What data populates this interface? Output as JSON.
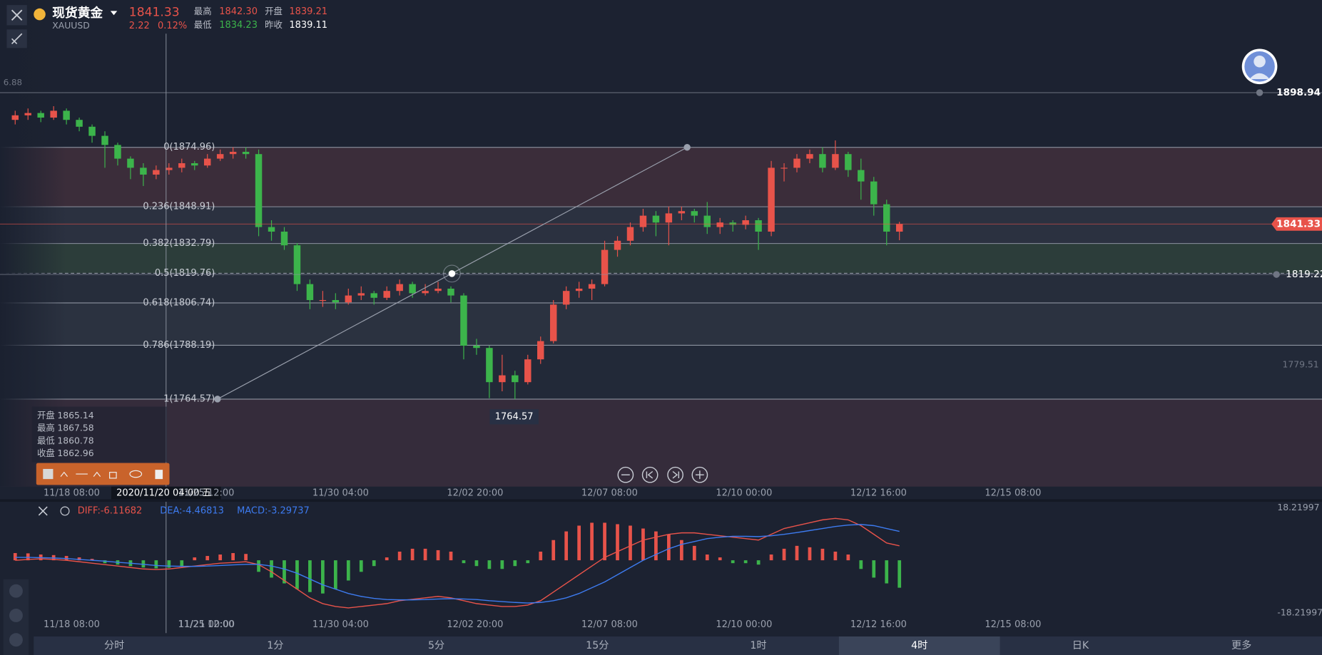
{
  "header": {
    "name": "现货黄金",
    "code": "XAUUSD",
    "price": "1841.33",
    "change": "2.22",
    "change_pct": "0.12%",
    "stats": [
      {
        "label": "最高",
        "value": "1842.30"
      },
      {
        "label": "开盘",
        "value": "1839.21"
      },
      {
        "label": "最低",
        "value": "1834.23"
      },
      {
        "label": "昨收",
        "value": "1839.11"
      }
    ]
  },
  "ohlc_box": [
    {
      "label": "开盘",
      "value": "1865.14"
    },
    {
      "label": "最高",
      "value": "1867.58"
    },
    {
      "label": "最低",
      "value": "1860.78"
    },
    {
      "label": "收盘",
      "value": "1862.96"
    }
  ],
  "crosshair_label": "2020/11/20 04:00 五",
  "left_cut_label": "6.88",
  "tabs": [
    "分时",
    "1分",
    "5分",
    "15分",
    "1时",
    "4时",
    "日K",
    "更多"
  ],
  "active_tab": "4时",
  "chart_data": [
    {
      "type": "candlestick",
      "up_color": "#e8534a",
      "down_color": "#3cb44b",
      "ylim": [
        1726.2,
        1939.56
      ],
      "x_labels": [
        "11/18 08:00",
        "11/21 00:00",
        "11/25 12:00",
        "11/30 04:00",
        "12/02 20:00",
        "12/07 08:00",
        "12/10 00:00",
        "12/12 16:00",
        "12/15 08:00"
      ],
      "price_lines": [
        1898.94,
        1841.33,
        1819.22
      ],
      "axis_labels": [
        1779.51
      ],
      "low_label": 1764.57,
      "fib_levels": [
        {
          "value": 1874.96,
          "label": "0(1874.96)"
        },
        {
          "value": 1848.91,
          "label": "0.236(1848.91)"
        },
        {
          "value": 1832.79,
          "label": "0.382(1832.79)"
        },
        {
          "value": 1819.76,
          "label": "0.5(1819.76)"
        },
        {
          "value": 1806.74,
          "label": "0.618(1806.74)"
        },
        {
          "value": 1788.19,
          "label": "0.786(1788.19)"
        },
        {
          "value": 1764.57,
          "label": "1(1764.57)"
        }
      ],
      "candles": [
        [
          1887,
          1891,
          1885,
          1889
        ],
        [
          1889,
          1892,
          1887,
          1890
        ],
        [
          1890,
          1891,
          1886,
          1888
        ],
        [
          1888,
          1893,
          1887,
          1891
        ],
        [
          1891,
          1892,
          1885,
          1887
        ],
        [
          1887,
          1888,
          1882,
          1884
        ],
        [
          1884,
          1885,
          1877,
          1880
        ],
        [
          1880,
          1882,
          1866,
          1876
        ],
        [
          1876,
          1877,
          1867,
          1870
        ],
        [
          1870,
          1871,
          1861,
          1866
        ],
        [
          1866,
          1868,
          1858,
          1863
        ],
        [
          1863,
          1867,
          1861,
          1865
        ],
        [
          1865,
          1868,
          1863,
          1866
        ],
        [
          1866,
          1870,
          1864,
          1868
        ],
        [
          1868,
          1869,
          1865,
          1867
        ],
        [
          1867,
          1872,
          1866,
          1870
        ],
        [
          1870,
          1874,
          1869,
          1872
        ],
        [
          1872,
          1875,
          1870,
          1873
        ],
        [
          1873,
          1875,
          1870,
          1872
        ],
        [
          1872,
          1874,
          1836,
          1840
        ],
        [
          1840,
          1843,
          1834,
          1838
        ],
        [
          1838,
          1840,
          1830,
          1832
        ],
        [
          1832,
          1833,
          1812,
          1815
        ],
        [
          1815,
          1817,
          1804,
          1808
        ],
        [
          1808,
          1812,
          1805,
          1808
        ],
        [
          1808,
          1811,
          1804,
          1807
        ],
        [
          1807,
          1813,
          1806,
          1810
        ],
        [
          1810,
          1814,
          1808,
          1811
        ],
        [
          1811,
          1812,
          1806,
          1809
        ],
        [
          1809,
          1814,
          1808,
          1812
        ],
        [
          1812,
          1817,
          1810,
          1815
        ],
        [
          1815,
          1816,
          1809,
          1811
        ],
        [
          1811,
          1815,
          1810,
          1812
        ],
        [
          1812,
          1816,
          1811,
          1813
        ],
        [
          1813,
          1814,
          1807,
          1810
        ],
        [
          1810,
          1811,
          1782,
          1788
        ],
        [
          1788,
          1791,
          1784,
          1787
        ],
        [
          1787,
          1788,
          1765,
          1772
        ],
        [
          1772,
          1784,
          1768,
          1775
        ],
        [
          1775,
          1777,
          1764.57,
          1772
        ],
        [
          1772,
          1784,
          1771,
          1782
        ],
        [
          1782,
          1792,
          1780,
          1790
        ],
        [
          1790,
          1808,
          1789,
          1806
        ],
        [
          1806,
          1814,
          1804,
          1812
        ],
        [
          1812,
          1816,
          1809,
          1813
        ],
        [
          1813,
          1817,
          1808,
          1815
        ],
        [
          1815,
          1834,
          1814,
          1830
        ],
        [
          1830,
          1836,
          1827,
          1834
        ],
        [
          1834,
          1842,
          1832,
          1840
        ],
        [
          1840,
          1848,
          1838,
          1845
        ],
        [
          1845,
          1847,
          1836,
          1842
        ],
        [
          1842,
          1849,
          1832,
          1846
        ],
        [
          1846,
          1849,
          1843,
          1847
        ],
        [
          1847,
          1848,
          1842,
          1845
        ],
        [
          1845,
          1851,
          1837,
          1840
        ],
        [
          1840,
          1844,
          1837,
          1842
        ],
        [
          1842,
          1843,
          1838,
          1841
        ],
        [
          1841,
          1845,
          1839,
          1843
        ],
        [
          1843,
          1844,
          1830,
          1838
        ],
        [
          1838,
          1869,
          1836,
          1866
        ],
        [
          1866,
          1868,
          1860,
          1866
        ],
        [
          1866,
          1872,
          1864,
          1870
        ],
        [
          1870,
          1874,
          1868,
          1872
        ],
        [
          1872,
          1875,
          1864,
          1866
        ],
        [
          1866,
          1878,
          1865,
          1872
        ],
        [
          1872,
          1873,
          1862,
          1865
        ],
        [
          1865,
          1870,
          1852,
          1860
        ],
        [
          1860,
          1862,
          1845,
          1850
        ],
        [
          1850,
          1852,
          1832,
          1838
        ],
        [
          1838,
          1842.3,
          1834.23,
          1841.33
        ]
      ]
    },
    {
      "type": "macd",
      "ylim": [
        -18.21997,
        18.21997
      ],
      "yticks": [
        18.21997,
        -18.21997
      ],
      "legend": [
        {
          "text": "DIFF:-6.11682",
          "color": "#e8534a"
        },
        {
          "text": "DEA:-4.46813",
          "color": "#3d7bf0"
        },
        {
          "text": "MACD:-3.29737",
          "color": "#3d7bf0"
        }
      ],
      "up_color": "#e8534a",
      "down_color": "#3cb44b",
      "histogram": [
        2.5,
        2.4,
        2,
        1.8,
        1.5,
        1,
        0.5,
        -1,
        -1.5,
        -2,
        -2.5,
        -2.8,
        -2.6,
        -2,
        1,
        1.5,
        2,
        2.5,
        2.2,
        -4,
        -6,
        -8,
        -10,
        -11,
        -11.5,
        -10,
        -7,
        -4,
        -2,
        1,
        3,
        4,
        4,
        3.5,
        3,
        -1,
        -2,
        -3,
        -3,
        -2,
        -1,
        3,
        7,
        10,
        12,
        13,
        13,
        12.5,
        12,
        11,
        10,
        9,
        7,
        5,
        2,
        1,
        -1,
        -1,
        -1.5,
        2,
        4,
        5,
        4.5,
        4,
        3,
        2,
        -3,
        -6,
        -8,
        -9.5
      ],
      "series": [
        {
          "name": "DIFF",
          "color": "#e8534a",
          "values": [
            0,
            0.3,
            0.5,
            0.3,
            0,
            -0.5,
            -1,
            -1.5,
            -2,
            -2.5,
            -3,
            -3.2,
            -3,
            -2.5,
            -2,
            -1.5,
            -1,
            -0.8,
            -0.5,
            -1.5,
            -4,
            -7,
            -10,
            -13,
            -15,
            -16,
            -16.5,
            -16,
            -15.5,
            -15,
            -14,
            -13.5,
            -13,
            -12.5,
            -13,
            -14,
            -15,
            -15.5,
            -16,
            -16,
            -15.5,
            -14,
            -11,
            -8,
            -5,
            -2,
            1,
            3,
            5,
            7,
            8,
            9,
            9.5,
            9.5,
            9,
            8.5,
            8,
            7.5,
            7,
            9,
            11,
            12,
            13,
            14,
            14.5,
            14,
            12,
            9,
            6,
            5
          ]
        },
        {
          "name": "DEA",
          "color": "#3d7bf0",
          "values": [
            1,
            1,
            0.9,
            0.8,
            0.6,
            0.3,
            0,
            -0.3,
            -0.7,
            -1,
            -1.4,
            -1.8,
            -2,
            -2.1,
            -2.1,
            -2,
            -1.8,
            -1.6,
            -1.4,
            -1.4,
            -2,
            -3,
            -4.5,
            -6.5,
            -8.5,
            -10,
            -11.5,
            -12.5,
            -13.2,
            -13.6,
            -13.7,
            -13.7,
            -13.6,
            -13.4,
            -13.3,
            -13.4,
            -13.6,
            -14,
            -14.3,
            -14.6,
            -14.8,
            -14.6,
            -14,
            -13,
            -11.5,
            -9.5,
            -7.5,
            -5,
            -2.5,
            0,
            2,
            4,
            5.5,
            6.5,
            7.5,
            8,
            8.3,
            8.3,
            8.2,
            8.5,
            9,
            9.6,
            10.3,
            11,
            11.7,
            12.2,
            12.4,
            12,
            11,
            10
          ]
        }
      ]
    }
  ]
}
